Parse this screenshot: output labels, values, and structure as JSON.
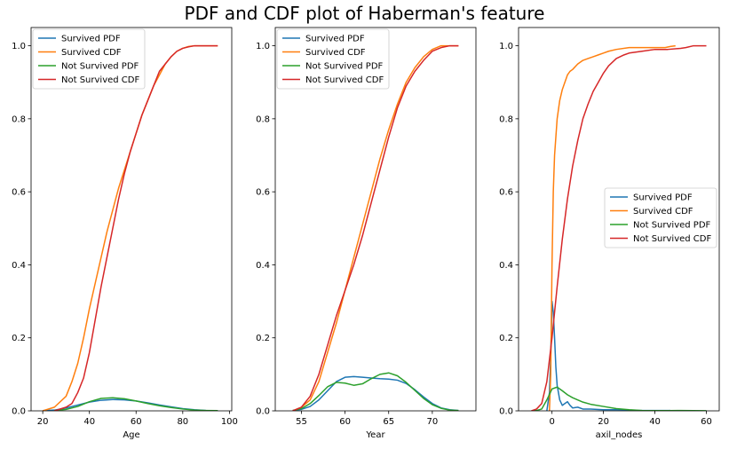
{
  "figure": {
    "title": "PDF and CDF plot of Haberman's feature"
  },
  "colors": {
    "survived_pdf": "#1f77b4",
    "survived_cdf": "#ff7f0e",
    "not_survived_pdf": "#2ca02c",
    "not_survived_cdf": "#d62728"
  },
  "chart_data": [
    {
      "type": "line",
      "title": "",
      "xlabel": "Age",
      "ylabel": "",
      "xlim": [
        15,
        101
      ],
      "ylim": [
        0,
        1.05
      ],
      "xticks": [
        20,
        40,
        60,
        80,
        100
      ],
      "yticks": [
        0.0,
        0.2,
        0.4,
        0.6,
        0.8,
        1.0
      ],
      "legend_position": "upper-left",
      "grid": false,
      "series": [
        {
          "name": "Survived PDF",
          "color": "#1f77b4",
          "x": [
            20,
            25,
            30,
            35,
            40,
            45,
            50,
            55,
            60,
            65,
            70,
            75,
            80,
            85,
            90,
            95
          ],
          "y": [
            0.0005,
            0.002,
            0.008,
            0.016,
            0.024,
            0.029,
            0.031,
            0.03,
            0.027,
            0.022,
            0.016,
            0.011,
            0.006,
            0.003,
            0.001,
            0.0005
          ]
        },
        {
          "name": "Survived CDF",
          "color": "#ff7f0e",
          "x": [
            20,
            25,
            30,
            32.5,
            35,
            37.5,
            40,
            42.5,
            45,
            47.5,
            50,
            52.5,
            55,
            57.5,
            60,
            62.5,
            65,
            67.5,
            70,
            72.5,
            75,
            77.5,
            80,
            82.5,
            85,
            87.5,
            90,
            95
          ],
          "y": [
            0,
            0.01,
            0.04,
            0.08,
            0.13,
            0.2,
            0.28,
            0.35,
            0.42,
            0.49,
            0.55,
            0.61,
            0.66,
            0.71,
            0.76,
            0.81,
            0.85,
            0.89,
            0.92,
            0.95,
            0.97,
            0.985,
            0.993,
            0.998,
            1.0,
            1.0,
            1.0,
            1.0
          ]
        },
        {
          "name": "Not Survived PDF",
          "color": "#2ca02c",
          "x": [
            25,
            30,
            35,
            40,
            45,
            50,
            55,
            60,
            65,
            70,
            75,
            80,
            85,
            90,
            95
          ],
          "y": [
            0.001,
            0.004,
            0.012,
            0.025,
            0.034,
            0.036,
            0.033,
            0.027,
            0.02,
            0.014,
            0.009,
            0.005,
            0.002,
            0.001,
            0.0005
          ]
        },
        {
          "name": "Not Survived CDF",
          "color": "#d62728",
          "x": [
            25,
            30,
            32.5,
            35,
            37.5,
            40,
            42.5,
            45,
            47.5,
            50,
            52.5,
            55,
            57.5,
            60,
            62.5,
            65,
            67.5,
            70,
            72.5,
            75,
            77.5,
            80,
            82.5,
            85,
            87.5,
            90,
            95
          ],
          "y": [
            0,
            0.01,
            0.02,
            0.05,
            0.09,
            0.16,
            0.25,
            0.34,
            0.42,
            0.5,
            0.58,
            0.65,
            0.71,
            0.76,
            0.81,
            0.85,
            0.89,
            0.93,
            0.95,
            0.97,
            0.985,
            0.993,
            0.997,
            1.0,
            1.0,
            1.0,
            1.0
          ]
        }
      ]
    },
    {
      "type": "line",
      "title": "",
      "xlabel": "Year",
      "ylabel": "",
      "xlim": [
        52,
        75
      ],
      "ylim": [
        0,
        1.05
      ],
      "xticks": [
        55,
        60,
        65,
        70
      ],
      "yticks": [
        0.0,
        0.2,
        0.4,
        0.6,
        0.8,
        1.0
      ],
      "legend_position": "upper-left",
      "grid": false,
      "series": [
        {
          "name": "Survived PDF",
          "color": "#1f77b4",
          "x": [
            54,
            55,
            56,
            57,
            58,
            59,
            60,
            61,
            62,
            63,
            64,
            65,
            66,
            67,
            68,
            69,
            70,
            71,
            72,
            73
          ],
          "y": [
            0.001,
            0.004,
            0.012,
            0.03,
            0.055,
            0.08,
            0.092,
            0.094,
            0.092,
            0.09,
            0.088,
            0.087,
            0.084,
            0.075,
            0.058,
            0.038,
            0.02,
            0.008,
            0.003,
            0.001
          ]
        },
        {
          "name": "Survived CDF",
          "color": "#ff7f0e",
          "x": [
            54,
            55,
            56,
            57,
            58,
            59,
            60,
            61,
            62,
            63,
            64,
            65,
            66,
            67,
            68,
            69,
            70,
            71,
            72,
            73
          ],
          "y": [
            0,
            0.01,
            0.03,
            0.08,
            0.16,
            0.24,
            0.33,
            0.42,
            0.51,
            0.6,
            0.69,
            0.77,
            0.84,
            0.9,
            0.94,
            0.97,
            0.99,
            1.0,
            1.0,
            1.0
          ]
        },
        {
          "name": "Not Survived PDF",
          "color": "#2ca02c",
          "x": [
            54,
            55,
            56,
            57,
            58,
            59,
            60,
            61,
            62,
            63,
            64,
            65,
            66,
            67,
            68,
            69,
            70,
            71,
            72,
            73
          ],
          "y": [
            0.001,
            0.006,
            0.02,
            0.042,
            0.066,
            0.078,
            0.076,
            0.07,
            0.074,
            0.088,
            0.1,
            0.104,
            0.096,
            0.078,
            0.056,
            0.034,
            0.017,
            0.007,
            0.002,
            0.001
          ]
        },
        {
          "name": "Not Survived CDF",
          "color": "#d62728",
          "x": [
            54,
            55,
            56,
            57,
            58,
            59,
            60,
            61,
            62,
            63,
            64,
            65,
            66,
            67,
            68,
            69,
            70,
            71,
            72,
            73
          ],
          "y": [
            0,
            0.01,
            0.04,
            0.1,
            0.18,
            0.26,
            0.33,
            0.4,
            0.48,
            0.57,
            0.66,
            0.75,
            0.83,
            0.89,
            0.93,
            0.96,
            0.985,
            0.995,
            1.0,
            1.0
          ]
        }
      ]
    },
    {
      "type": "line",
      "title": "",
      "xlabel": "axil_nodes",
      "ylabel": "",
      "xlim": [
        -13,
        65
      ],
      "ylim": [
        0,
        1.05
      ],
      "xticks": [
        0,
        20,
        40,
        60
      ],
      "yticks": [
        0.0,
        0.2,
        0.4,
        0.6,
        0.8,
        1.0
      ],
      "legend_position": "center-right",
      "grid": false,
      "series": [
        {
          "name": "Survived PDF",
          "color": "#1f77b4",
          "x": [
            -2,
            -1,
            -0.5,
            0,
            0.5,
            1,
            1.5,
            2,
            3,
            4,
            5,
            6,
            7,
            8,
            10,
            12,
            15,
            20,
            25,
            30,
            40,
            46
          ],
          "y": [
            0,
            0.05,
            0.15,
            0.3,
            0.27,
            0.2,
            0.12,
            0.07,
            0.03,
            0.015,
            0.02,
            0.025,
            0.015,
            0.008,
            0.01,
            0.005,
            0.005,
            0.003,
            0.003,
            0.001,
            0.001,
            0.001
          ]
        },
        {
          "name": "Survived CDF",
          "color": "#ff7f0e",
          "x": [
            -1,
            -0.5,
            0,
            0.5,
            1,
            2,
            3,
            4,
            5,
            6,
            7,
            8,
            10,
            12,
            14,
            16,
            18,
            20,
            22,
            25,
            30,
            35,
            40,
            44,
            46,
            48
          ],
          "y": [
            0,
            0.1,
            0.4,
            0.6,
            0.7,
            0.8,
            0.85,
            0.88,
            0.9,
            0.92,
            0.93,
            0.935,
            0.95,
            0.96,
            0.965,
            0.97,
            0.975,
            0.98,
            0.985,
            0.99,
            0.995,
            0.995,
            0.995,
            0.995,
            0.998,
            1.0
          ]
        },
        {
          "name": "Not Survived PDF",
          "color": "#2ca02c",
          "x": [
            -8,
            -6,
            -4,
            -2,
            0,
            2,
            4,
            6,
            8,
            10,
            12,
            15,
            20,
            25,
            30,
            35,
            40,
            45,
            50,
            55,
            60
          ],
          "y": [
            0,
            0.001,
            0.005,
            0.03,
            0.06,
            0.065,
            0.055,
            0.044,
            0.036,
            0.03,
            0.024,
            0.018,
            0.012,
            0.006,
            0.003,
            0.001,
            0.0005,
            0.0005,
            0.001,
            0.0005,
            0.0003
          ]
        },
        {
          "name": "Not Survived CDF",
          "color": "#d62728",
          "x": [
            -8,
            -6,
            -4,
            -2,
            0,
            2,
            4,
            6,
            8,
            10,
            12,
            14,
            16,
            18,
            20,
            22,
            25,
            28,
            30,
            35,
            40,
            45,
            50,
            52,
            55,
            60
          ],
          "y": [
            0,
            0.005,
            0.02,
            0.08,
            0.2,
            0.34,
            0.47,
            0.58,
            0.67,
            0.74,
            0.8,
            0.84,
            0.875,
            0.9,
            0.925,
            0.945,
            0.965,
            0.975,
            0.98,
            0.985,
            0.99,
            0.99,
            0.993,
            0.995,
            1.0,
            1.0
          ]
        }
      ]
    }
  ]
}
